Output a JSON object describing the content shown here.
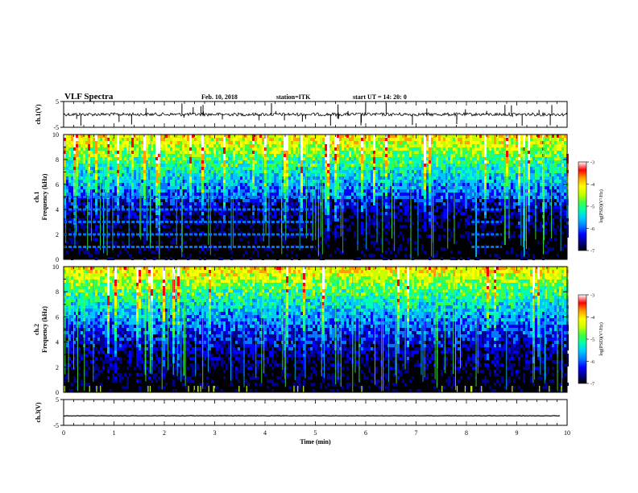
{
  "header": {
    "title": "VLF Spectra",
    "date": "Feb. 10, 2018",
    "station": "station=ITK",
    "start": "start  UT  =   14: 20: 0"
  },
  "colormap": [
    "#000000",
    "#00008b",
    "#0000ff",
    "#0078ff",
    "#00c8ff",
    "#00ffb0",
    "#40ff40",
    "#c8ff00",
    "#ffff00",
    "#ffa000",
    "#ff0000",
    "#ffffff"
  ],
  "chart_data": [
    {
      "type": "line",
      "panel": "ch1-waveform",
      "ylabel": "ch.1(V)",
      "ylim": [
        -5,
        5
      ],
      "ytick_labels": [
        "5",
        "-5"
      ],
      "x": [
        0,
        10
      ],
      "y": [
        0,
        0
      ]
    },
    {
      "type": "heatmap",
      "panel": "ch1-spectrogram",
      "ylabel_line1": "ch.1",
      "ylabel_line2": "Frequency (kHz)",
      "ylim": [
        0,
        10
      ],
      "ytick_labels": [
        "0",
        "2",
        "4",
        "6",
        "8",
        "10"
      ],
      "harmonic_lines_khz": [
        1,
        2,
        3,
        4,
        5
      ],
      "harmonic_segments_min": [
        [
          0,
          5.0
        ],
        [
          8.1,
          8.7
        ]
      ],
      "colorbar": {
        "label": "log(PSD)(V²/Hz)",
        "ticks": [
          "-3",
          "-4",
          "-5",
          "-6",
          "-7"
        ],
        "range": [
          -7,
          -3
        ]
      }
    },
    {
      "type": "heatmap",
      "panel": "ch2-spectrogram",
      "ylabel_line1": "ch.2",
      "ylabel_line2": "Frequency (kHz)",
      "ylim": [
        0,
        10
      ],
      "ytick_labels": [
        "0",
        "2",
        "4",
        "6",
        "8",
        "10"
      ],
      "colorbar": {
        "label": "log(PSD)(V²/Hz)",
        "ticks": [
          "-3",
          "-4",
          "-5",
          "-6",
          "-7"
        ],
        "range": [
          -7,
          -3
        ]
      }
    },
    {
      "type": "line",
      "panel": "ch3-waveform",
      "ylabel": "ch.3(V)",
      "ylim": [
        -5,
        5
      ],
      "ytick_labels": [
        "5",
        "-5"
      ],
      "x": [
        0,
        9.85
      ],
      "y": [
        -1.3,
        -1.3
      ]
    }
  ],
  "x_axis": {
    "label": "Time (min)",
    "range": [
      0,
      10
    ],
    "ticks": [
      "0",
      "1",
      "2",
      "3",
      "4",
      "5",
      "6",
      "7",
      "8",
      "9",
      "10"
    ]
  }
}
